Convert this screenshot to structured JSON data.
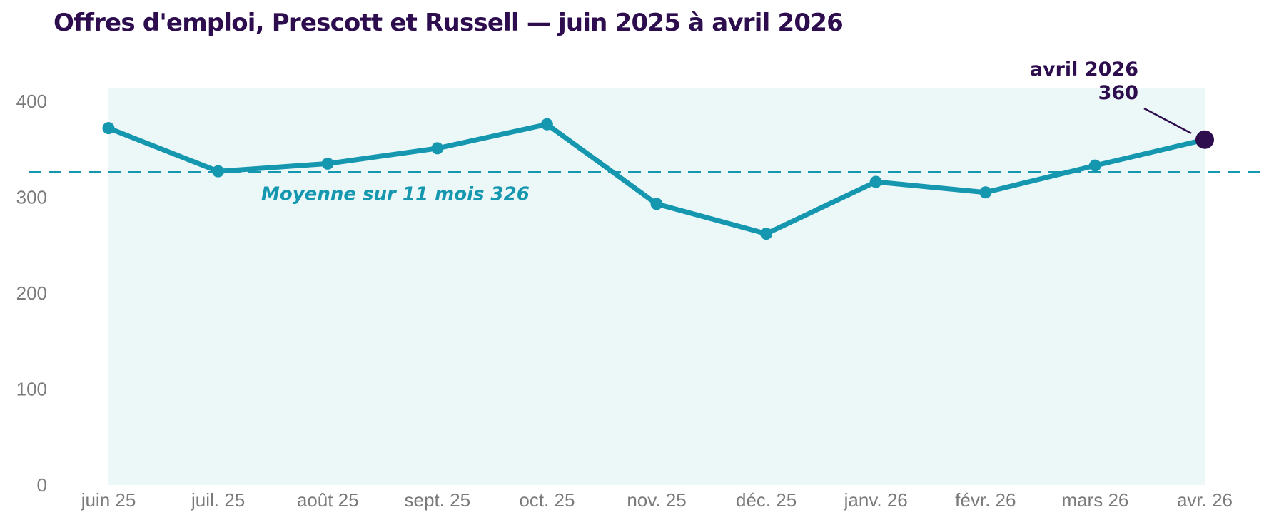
{
  "title": "Offres d'emploi, Prescott et Russell — juin 2025 à avril 2026",
  "chart_data": {
    "type": "line",
    "title": "Offres d'emploi, Prescott et Russell — juin 2025 à avril 2026",
    "categories": [
      "juin 25",
      "juil. 25",
      "août 25",
      "sept. 25",
      "oct. 25",
      "nov. 25",
      "déc. 25",
      "janv. 26",
      "févr. 26",
      "mars 26",
      "avr. 26"
    ],
    "series": [
      {
        "values": [
          372,
          327,
          335,
          351,
          376,
          293,
          262,
          316,
          305,
          333,
          360
        ]
      }
    ],
    "ylim": [
      0,
      400
    ],
    "yticks": [
      0,
      100,
      200,
      300,
      400
    ],
    "grid": false,
    "average": {
      "value": 326,
      "label": "Moyenne sur 11 mois",
      "value_label": "326"
    },
    "callout": {
      "label": "avril 2026",
      "value_label": "360",
      "index": 10
    },
    "colors": {
      "line": "#1597b0",
      "highlight": "#2e0d4f",
      "band": "#ecf8f8",
      "average": "#1597b0",
      "axis_text": "#7a7a7a"
    }
  }
}
